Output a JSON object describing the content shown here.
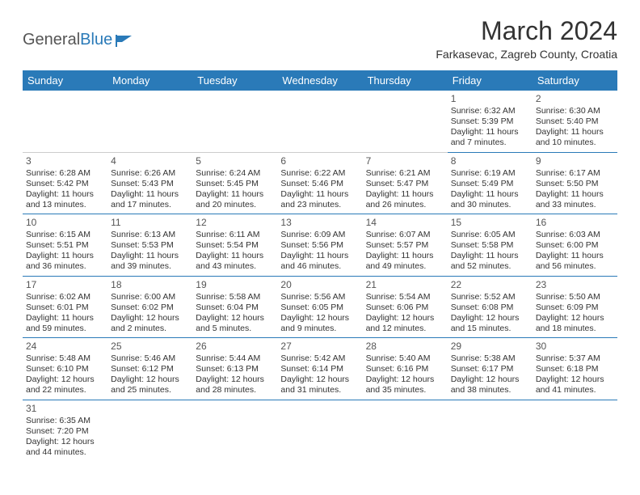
{
  "logo": {
    "textA": "General",
    "textB": "Blue"
  },
  "title": "March 2024",
  "subtitle": "Farkasevac, Zagreb County, Croatia",
  "dayHeaders": [
    "Sunday",
    "Monday",
    "Tuesday",
    "Wednesday",
    "Thursday",
    "Friday",
    "Saturday"
  ],
  "colors": {
    "headerBg": "#2a7ab8",
    "headerFg": "#ffffff",
    "text": "#333333"
  },
  "weeks": [
    [
      null,
      null,
      null,
      null,
      null,
      {
        "n": "1",
        "sr": "Sunrise: 6:32 AM",
        "ss": "Sunset: 5:39 PM",
        "d1": "Daylight: 11 hours",
        "d2": "and 7 minutes."
      },
      {
        "n": "2",
        "sr": "Sunrise: 6:30 AM",
        "ss": "Sunset: 5:40 PM",
        "d1": "Daylight: 11 hours",
        "d2": "and 10 minutes."
      }
    ],
    [
      {
        "n": "3",
        "sr": "Sunrise: 6:28 AM",
        "ss": "Sunset: 5:42 PM",
        "d1": "Daylight: 11 hours",
        "d2": "and 13 minutes."
      },
      {
        "n": "4",
        "sr": "Sunrise: 6:26 AM",
        "ss": "Sunset: 5:43 PM",
        "d1": "Daylight: 11 hours",
        "d2": "and 17 minutes."
      },
      {
        "n": "5",
        "sr": "Sunrise: 6:24 AM",
        "ss": "Sunset: 5:45 PM",
        "d1": "Daylight: 11 hours",
        "d2": "and 20 minutes."
      },
      {
        "n": "6",
        "sr": "Sunrise: 6:22 AM",
        "ss": "Sunset: 5:46 PM",
        "d1": "Daylight: 11 hours",
        "d2": "and 23 minutes."
      },
      {
        "n": "7",
        "sr": "Sunrise: 6:21 AM",
        "ss": "Sunset: 5:47 PM",
        "d1": "Daylight: 11 hours",
        "d2": "and 26 minutes."
      },
      {
        "n": "8",
        "sr": "Sunrise: 6:19 AM",
        "ss": "Sunset: 5:49 PM",
        "d1": "Daylight: 11 hours",
        "d2": "and 30 minutes."
      },
      {
        "n": "9",
        "sr": "Sunrise: 6:17 AM",
        "ss": "Sunset: 5:50 PM",
        "d1": "Daylight: 11 hours",
        "d2": "and 33 minutes."
      }
    ],
    [
      {
        "n": "10",
        "sr": "Sunrise: 6:15 AM",
        "ss": "Sunset: 5:51 PM",
        "d1": "Daylight: 11 hours",
        "d2": "and 36 minutes."
      },
      {
        "n": "11",
        "sr": "Sunrise: 6:13 AM",
        "ss": "Sunset: 5:53 PM",
        "d1": "Daylight: 11 hours",
        "d2": "and 39 minutes."
      },
      {
        "n": "12",
        "sr": "Sunrise: 6:11 AM",
        "ss": "Sunset: 5:54 PM",
        "d1": "Daylight: 11 hours",
        "d2": "and 43 minutes."
      },
      {
        "n": "13",
        "sr": "Sunrise: 6:09 AM",
        "ss": "Sunset: 5:56 PM",
        "d1": "Daylight: 11 hours",
        "d2": "and 46 minutes."
      },
      {
        "n": "14",
        "sr": "Sunrise: 6:07 AM",
        "ss": "Sunset: 5:57 PM",
        "d1": "Daylight: 11 hours",
        "d2": "and 49 minutes."
      },
      {
        "n": "15",
        "sr": "Sunrise: 6:05 AM",
        "ss": "Sunset: 5:58 PM",
        "d1": "Daylight: 11 hours",
        "d2": "and 52 minutes."
      },
      {
        "n": "16",
        "sr": "Sunrise: 6:03 AM",
        "ss": "Sunset: 6:00 PM",
        "d1": "Daylight: 11 hours",
        "d2": "and 56 minutes."
      }
    ],
    [
      {
        "n": "17",
        "sr": "Sunrise: 6:02 AM",
        "ss": "Sunset: 6:01 PM",
        "d1": "Daylight: 11 hours",
        "d2": "and 59 minutes."
      },
      {
        "n": "18",
        "sr": "Sunrise: 6:00 AM",
        "ss": "Sunset: 6:02 PM",
        "d1": "Daylight: 12 hours",
        "d2": "and 2 minutes."
      },
      {
        "n": "19",
        "sr": "Sunrise: 5:58 AM",
        "ss": "Sunset: 6:04 PM",
        "d1": "Daylight: 12 hours",
        "d2": "and 5 minutes."
      },
      {
        "n": "20",
        "sr": "Sunrise: 5:56 AM",
        "ss": "Sunset: 6:05 PM",
        "d1": "Daylight: 12 hours",
        "d2": "and 9 minutes."
      },
      {
        "n": "21",
        "sr": "Sunrise: 5:54 AM",
        "ss": "Sunset: 6:06 PM",
        "d1": "Daylight: 12 hours",
        "d2": "and 12 minutes."
      },
      {
        "n": "22",
        "sr": "Sunrise: 5:52 AM",
        "ss": "Sunset: 6:08 PM",
        "d1": "Daylight: 12 hours",
        "d2": "and 15 minutes."
      },
      {
        "n": "23",
        "sr": "Sunrise: 5:50 AM",
        "ss": "Sunset: 6:09 PM",
        "d1": "Daylight: 12 hours",
        "d2": "and 18 minutes."
      }
    ],
    [
      {
        "n": "24",
        "sr": "Sunrise: 5:48 AM",
        "ss": "Sunset: 6:10 PM",
        "d1": "Daylight: 12 hours",
        "d2": "and 22 minutes."
      },
      {
        "n": "25",
        "sr": "Sunrise: 5:46 AM",
        "ss": "Sunset: 6:12 PM",
        "d1": "Daylight: 12 hours",
        "d2": "and 25 minutes."
      },
      {
        "n": "26",
        "sr": "Sunrise: 5:44 AM",
        "ss": "Sunset: 6:13 PM",
        "d1": "Daylight: 12 hours",
        "d2": "and 28 minutes."
      },
      {
        "n": "27",
        "sr": "Sunrise: 5:42 AM",
        "ss": "Sunset: 6:14 PM",
        "d1": "Daylight: 12 hours",
        "d2": "and 31 minutes."
      },
      {
        "n": "28",
        "sr": "Sunrise: 5:40 AM",
        "ss": "Sunset: 6:16 PM",
        "d1": "Daylight: 12 hours",
        "d2": "and 35 minutes."
      },
      {
        "n": "29",
        "sr": "Sunrise: 5:38 AM",
        "ss": "Sunset: 6:17 PM",
        "d1": "Daylight: 12 hours",
        "d2": "and 38 minutes."
      },
      {
        "n": "30",
        "sr": "Sunrise: 5:37 AM",
        "ss": "Sunset: 6:18 PM",
        "d1": "Daylight: 12 hours",
        "d2": "and 41 minutes."
      }
    ],
    [
      {
        "n": "31",
        "sr": "Sunrise: 6:35 AM",
        "ss": "Sunset: 7:20 PM",
        "d1": "Daylight: 12 hours",
        "d2": "and 44 minutes."
      },
      null,
      null,
      null,
      null,
      null,
      null
    ]
  ]
}
